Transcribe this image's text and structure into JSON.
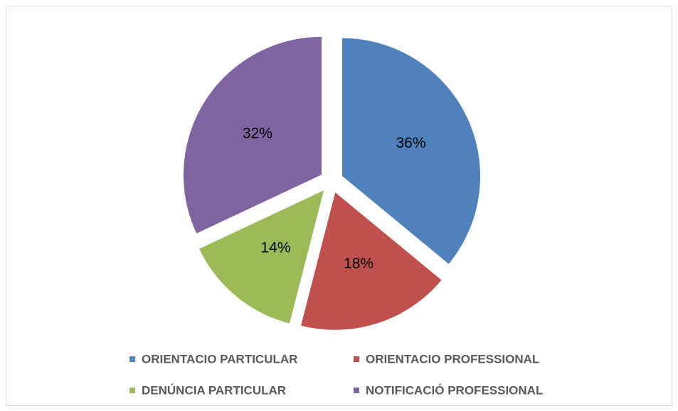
{
  "chart_data": {
    "type": "pie",
    "categories": [
      "ORIENTACIO PARTICULAR",
      "ORIENTACIO PROFESSIONAL",
      "DENÚNCIA PARTICULAR",
      "NOTIFICACIÓ PROFESSIONAL"
    ],
    "values": [
      36,
      18,
      14,
      32
    ],
    "value_labels": [
      "36%",
      "18%",
      "14%",
      "32%"
    ],
    "colors": [
      "#4f81bd",
      "#c0504d",
      "#9bbb59",
      "#8064a2"
    ],
    "legend": "bottom"
  }
}
